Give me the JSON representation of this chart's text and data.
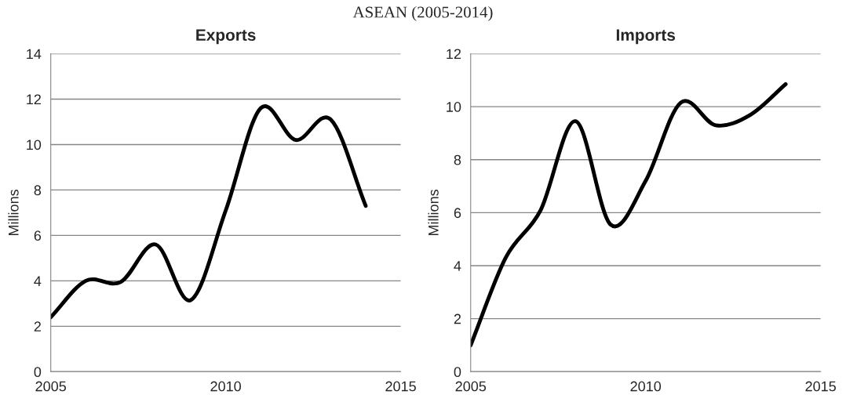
{
  "chart_data": [
    {
      "type": "line",
      "title": "Exports",
      "ylabel": "Millions",
      "annotations": [
        "ASEAN (2005-2014)"
      ],
      "x": [
        2005,
        2006,
        2007,
        2008,
        2009,
        2010,
        2011,
        2012,
        2013,
        2014
      ],
      "series": [
        {
          "color": "#000000",
          "values": [
            2.4,
            4.0,
            3.95,
            5.6,
            3.15,
            7.1,
            11.6,
            10.2,
            11.1,
            7.3
          ]
        }
      ],
      "xlim": [
        2005,
        2015
      ],
      "xticks": [
        2005,
        2010,
        2015
      ],
      "ylim": [
        0,
        14
      ],
      "yticks": [
        0,
        2,
        4,
        6,
        8,
        10,
        12,
        14
      ],
      "grid": "y",
      "legend": false,
      "marker": "none",
      "line_style": "solid"
    },
    {
      "type": "line",
      "title": "Imports",
      "ylabel": "Millions",
      "x": [
        2005,
        2006,
        2007,
        2008,
        2009,
        2010,
        2011,
        2012,
        2013,
        2014
      ],
      "series": [
        {
          "color": "#000000",
          "values": [
            1.0,
            4.3,
            6.1,
            9.45,
            5.55,
            7.2,
            10.15,
            9.3,
            9.7,
            10.85
          ]
        }
      ],
      "xlim": [
        2005,
        2015
      ],
      "xticks": [
        2005,
        2010,
        2015
      ],
      "ylim": [
        0,
        12
      ],
      "yticks": [
        0,
        2,
        4,
        6,
        8,
        10,
        12
      ],
      "grid": "y",
      "legend": false,
      "marker": "none",
      "line_style": "solid"
    }
  ]
}
